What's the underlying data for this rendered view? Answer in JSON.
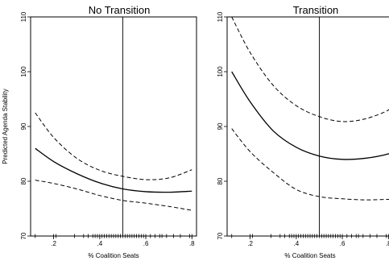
{
  "chart_data": [
    {
      "type": "line",
      "title": "No Transition",
      "xlabel": "% Coalition Seats",
      "ylabel": "Predicted Agenda Stability",
      "xlim": [
        0.1,
        0.82
      ],
      "ylim": [
        70,
        110
      ],
      "xticks": [
        0.2,
        0.4,
        0.6,
        0.8
      ],
      "xtick_labels": [
        ".2",
        ".4",
        ".6",
        ".8"
      ],
      "yticks": [
        70,
        80,
        90,
        100,
        110
      ],
      "ytick_labels": [
        "70",
        "80",
        "90",
        "100",
        "110"
      ],
      "reference_line_x": 0.5,
      "grid": false,
      "x": [
        0.12,
        0.2,
        0.3,
        0.4,
        0.5,
        0.6,
        0.7,
        0.8
      ],
      "series": [
        {
          "role": "prediction",
          "values": [
            86.0,
            83.6,
            81.4,
            79.7,
            78.6,
            78.1,
            78.0,
            78.2
          ]
        },
        {
          "role": "upper_ci",
          "values": [
            92.5,
            88.0,
            84.2,
            82.0,
            80.9,
            80.3,
            80.6,
            82.1
          ]
        },
        {
          "role": "lower_ci",
          "values": [
            80.2,
            79.6,
            78.6,
            77.4,
            76.5,
            76.0,
            75.4,
            74.7
          ]
        }
      ],
      "rug_x": [
        0.12,
        0.2,
        0.21,
        0.29,
        0.33,
        0.35,
        0.37,
        0.38,
        0.39,
        0.4,
        0.41,
        0.42,
        0.43,
        0.44,
        0.45,
        0.46,
        0.47,
        0.48,
        0.49,
        0.5,
        0.51,
        0.52,
        0.53,
        0.54,
        0.55,
        0.56,
        0.57,
        0.58,
        0.59,
        0.6,
        0.62,
        0.64,
        0.66,
        0.67,
        0.69,
        0.72,
        0.75,
        0.79,
        0.8
      ],
      "rug_y": 70
    },
    {
      "type": "line",
      "title": "Transition",
      "xlabel": "% Coalition Seats",
      "ylabel": "",
      "xlim": [
        0.1,
        0.82
      ],
      "ylim": [
        70,
        110
      ],
      "xticks": [
        0.2,
        0.4,
        0.6,
        0.8
      ],
      "xtick_labels": [
        ".2",
        ".4",
        ".6",
        ".8"
      ],
      "yticks": [
        70,
        80,
        90,
        100,
        110
      ],
      "ytick_labels": [
        "70",
        "80",
        "90",
        "100",
        "110"
      ],
      "reference_line_x": 0.5,
      "grid": false,
      "x": [
        0.12,
        0.2,
        0.3,
        0.4,
        0.5,
        0.6,
        0.7,
        0.8,
        0.82
      ],
      "series": [
        {
          "role": "prediction",
          "values": [
            100.0,
            94.5,
            89.2,
            86.2,
            84.6,
            84.0,
            84.2,
            85.0,
            85.6
          ]
        },
        {
          "role": "upper_ci",
          "values": [
            110.0,
            103.5,
            97.5,
            93.8,
            91.8,
            90.9,
            91.4,
            93.0,
            94.3
          ]
        },
        {
          "role": "lower_ci",
          "values": [
            89.6,
            85.4,
            81.6,
            78.5,
            77.2,
            76.8,
            76.6,
            76.7,
            76.7
          ]
        }
      ],
      "rug_x": [
        0.12,
        0.2,
        0.21,
        0.29,
        0.33,
        0.35,
        0.37,
        0.38,
        0.39,
        0.4,
        0.41,
        0.42,
        0.43,
        0.44,
        0.45,
        0.46,
        0.47,
        0.48,
        0.49,
        0.5,
        0.51,
        0.52,
        0.53,
        0.54,
        0.55,
        0.56,
        0.57,
        0.58,
        0.59,
        0.6,
        0.62,
        0.64,
        0.66,
        0.67,
        0.69,
        0.72,
        0.75,
        0.79,
        0.8
      ],
      "rug_y": 70
    }
  ]
}
